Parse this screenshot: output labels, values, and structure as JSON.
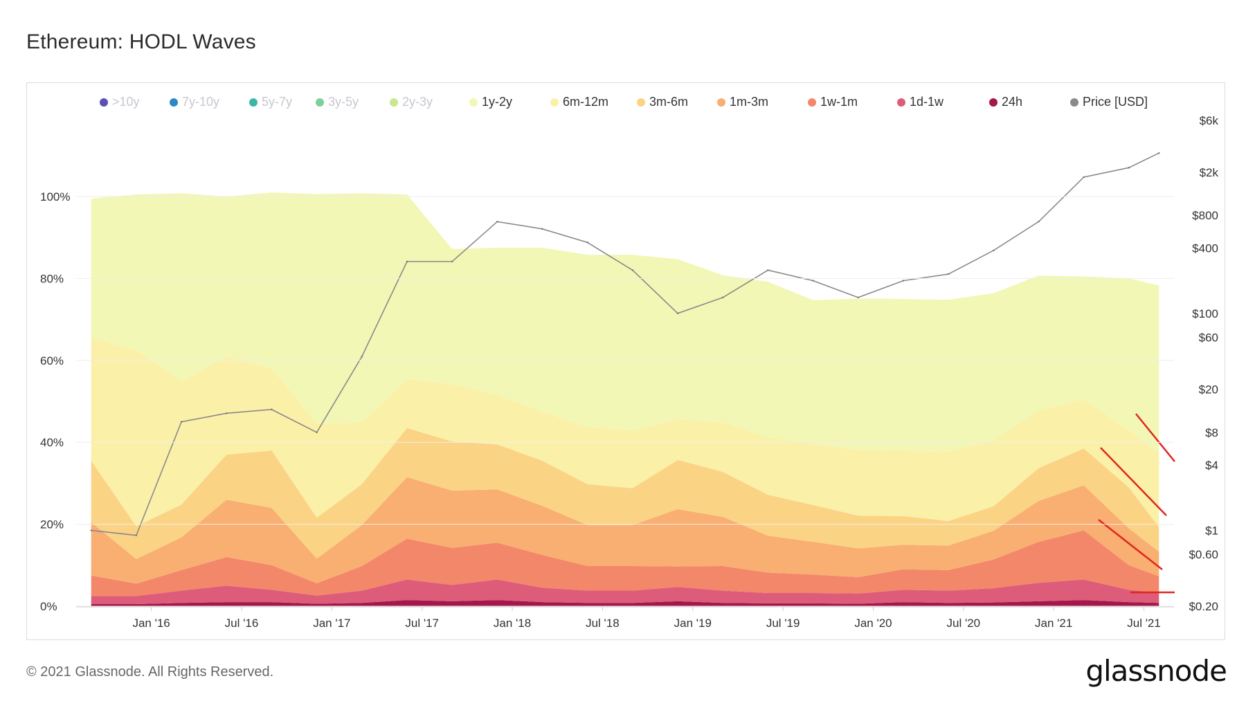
{
  "title": "Ethereum: HODL Waves",
  "footer": {
    "copyright": "© 2021 Glassnode. All Rights Reserved.",
    "logo_text": "glassnode",
    "watermark_text": "glassnode"
  },
  "chart_data": {
    "type": "area",
    "stacked": true,
    "legend_position": "top",
    "legend": [
      {
        "name": ">10y",
        "color": "#5b4fb8",
        "visible": false
      },
      {
        "name": "7y-10y",
        "color": "#2f86c6",
        "visible": false
      },
      {
        "name": "5y-7y",
        "color": "#3cb6a8",
        "visible": false
      },
      {
        "name": "3y-5y",
        "color": "#7fcf96",
        "visible": false
      },
      {
        "name": "2y-3y",
        "color": "#c8e88d",
        "visible": false
      },
      {
        "name": "1y-2y",
        "color": "#f2f7b5",
        "visible": true
      },
      {
        "name": "6m-12m",
        "color": "#fbf0a8",
        "visible": true
      },
      {
        "name": "3m-6m",
        "color": "#fbd385",
        "visible": true
      },
      {
        "name": "1m-3m",
        "color": "#f9ae72",
        "visible": true
      },
      {
        "name": "1w-1m",
        "color": "#f2876a",
        "visible": true
      },
      {
        "name": "1d-1w",
        "color": "#dd5c7a",
        "visible": true
      },
      {
        "name": "24h",
        "color": "#a3174a",
        "visible": true
      },
      {
        "name": "Price [USD]",
        "color": "#8a8a8a",
        "visible": true
      }
    ],
    "x": [
      "2015-09",
      "2015-12",
      "2016-03",
      "2016-06",
      "2016-09",
      "2016-12",
      "2017-03",
      "2017-06",
      "2017-09",
      "2017-12",
      "2018-03",
      "2018-06",
      "2018-09",
      "2018-12",
      "2019-03",
      "2019-06",
      "2019-09",
      "2019-12",
      "2020-03",
      "2020-06",
      "2020-09",
      "2020-12",
      "2021-03",
      "2021-06",
      "2021-08"
    ],
    "x_ticks": [
      "Jan '16",
      "Jul '16",
      "Jan '17",
      "Jul '17",
      "Jan '18",
      "Jul '18",
      "Jan '19",
      "Jul '19",
      "Jan '20",
      "Jul '20",
      "Jan '21",
      "Jul '21"
    ],
    "y_left": {
      "ticks": [
        "0%",
        "20%",
        "40%",
        "60%",
        "80%",
        "100%"
      ],
      "range": [
        0,
        100
      ]
    },
    "y_right": {
      "scale": "log",
      "ticks": [
        "$0.20",
        "$0.60",
        "$1",
        "$4",
        "$8",
        "$20",
        "$60",
        "$100",
        "$400",
        "$800",
        "$2k",
        "$6k"
      ]
    },
    "series": [
      {
        "name": "24h",
        "values": [
          0.5,
          0.5,
          0.8,
          1.0,
          1.0,
          0.6,
          0.8,
          1.5,
          1.2,
          1.5,
          1.0,
          0.8,
          0.8,
          1.2,
          0.8,
          0.7,
          0.7,
          0.6,
          1.0,
          0.8,
          0.9,
          1.2,
          1.5,
          1.0,
          0.8
        ]
      },
      {
        "name": "1d-1w",
        "values": [
          2,
          2,
          3,
          4,
          3,
          2,
          3,
          5,
          4,
          5,
          3.5,
          3,
          3,
          3.5,
          3,
          2.5,
          2.5,
          2.5,
          3,
          3,
          3.5,
          4.5,
          5,
          3,
          2.5
        ]
      },
      {
        "name": "1w-1m",
        "values": [
          5,
          3,
          5,
          7,
          6,
          3,
          6,
          10,
          9,
          9,
          8,
          6,
          6,
          5,
          6,
          5,
          4.5,
          4,
          5,
          5,
          7,
          10,
          12,
          6,
          4
        ]
      },
      {
        "name": "1m-3m",
        "values": [
          13,
          6,
          8,
          14,
          14,
          6,
          10,
          15,
          14,
          13,
          12,
          10,
          10,
          14,
          12,
          9,
          8,
          7,
          6,
          6,
          7,
          10,
          11,
          9,
          6
        ]
      },
      {
        "name": "3m-6m",
        "values": [
          15,
          8,
          8,
          11,
          14,
          10,
          10,
          12,
          12,
          11,
          11,
          10,
          9,
          12,
          11,
          10,
          9,
          8,
          7,
          6,
          6,
          8,
          9,
          10,
          6
        ]
      },
      {
        "name": "6m-12m",
        "values": [
          30,
          43,
          30,
          24,
          20,
          23,
          15,
          12,
          14,
          12,
          12,
          14,
          14,
          10,
          12,
          14,
          15,
          16,
          16,
          17,
          16,
          14,
          12,
          14,
          18
        ]
      },
      {
        "name": "1y-2y",
        "values": [
          34,
          38,
          46,
          39,
          43,
          56,
          56,
          45,
          33,
          36,
          40,
          42,
          43,
          39,
          36,
          38,
          35,
          37,
          37,
          37,
          36,
          33,
          30,
          37,
          41
        ]
      }
    ],
    "price_usd": [
      1.0,
      0.9,
      10,
      12,
      13,
      8,
      40,
      300,
      300,
      700,
      600,
      450,
      250,
      100,
      140,
      250,
      200,
      140,
      200,
      230,
      380,
      700,
      1800,
      2200,
      3000
    ]
  }
}
